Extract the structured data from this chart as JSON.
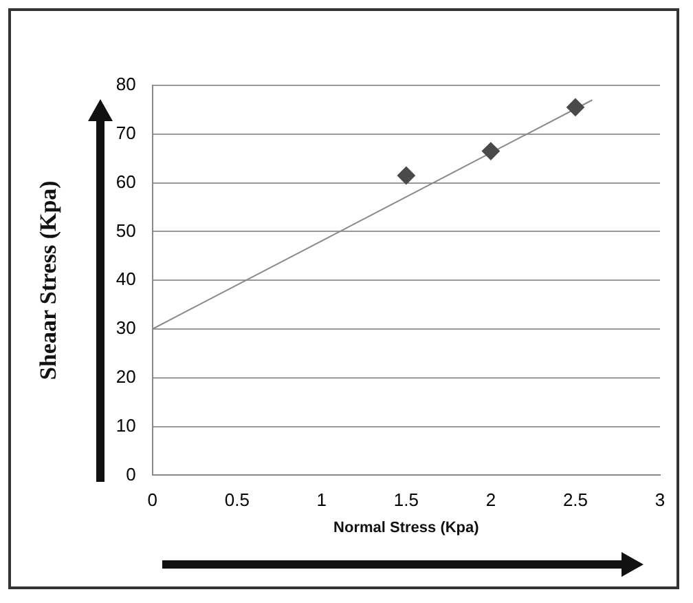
{
  "chart_data": {
    "type": "scatter",
    "xlabel": "Normal Stress (Kpa)",
    "ylabel": "Sheaar Stress (Kpa)",
    "xlim": [
      0,
      3
    ],
    "xticks": [
      0,
      0.5,
      1,
      1.5,
      2,
      2.5,
      3
    ],
    "ylim": [
      0,
      80
    ],
    "yticks": [
      0,
      10,
      20,
      30,
      40,
      50,
      60,
      70,
      80
    ],
    "grid": "y",
    "legend": false,
    "series": [
      {
        "type": "scatter",
        "marker": "diamond",
        "color": "#4a4a4a",
        "x": [
          1.5,
          2,
          2.5
        ],
        "values": [
          61.5,
          66.5,
          75.5
        ]
      },
      {
        "type": "line",
        "marker": "none",
        "color": "#8a8a8a",
        "x": [
          0,
          2.6
        ],
        "values": [
          30,
          77
        ]
      }
    ]
  }
}
